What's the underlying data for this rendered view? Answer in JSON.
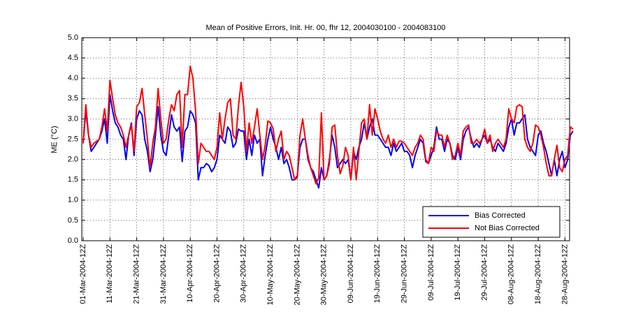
{
  "chart_data": {
    "type": "line",
    "title": "Mean of Positive Errors, Init. Hr. 00, fhr 12, 2004030100 - 2004083100",
    "y_label": "ME (°C)",
    "categories": [
      "01-Mar-2004-12Z",
      null,
      null,
      null,
      null,
      null,
      null,
      null,
      null,
      null,
      "11-Mar-2004-12Z",
      null,
      null,
      null,
      null,
      null,
      null,
      null,
      null,
      null,
      "21-Mar-2004-12Z",
      null,
      null,
      null,
      null,
      null,
      null,
      null,
      null,
      null,
      "31-Mar-2004-12Z",
      null,
      null,
      null,
      null,
      null,
      null,
      null,
      null,
      null,
      "10-Apr-2004-12Z",
      null,
      null,
      null,
      null,
      null,
      null,
      null,
      null,
      null,
      "20-Apr-2004-12Z",
      null,
      null,
      null,
      null,
      null,
      null,
      null,
      null,
      null,
      "30-Apr-2004-12Z",
      null,
      null,
      null,
      null,
      null,
      null,
      null,
      null,
      null,
      "10-May-2004-12Z",
      null,
      null,
      null,
      null,
      null,
      null,
      null,
      null,
      null,
      "20-May-2004-12Z",
      null,
      null,
      null,
      null,
      null,
      null,
      null,
      null,
      null,
      "30-May-2004-12Z",
      null,
      null,
      null,
      null,
      null,
      null,
      null,
      null,
      null,
      "09-Jun-2004-12Z",
      null,
      null,
      null,
      null,
      null,
      null,
      null,
      null,
      null,
      "19-Jun-2004-12Z",
      null,
      null,
      null,
      null,
      null,
      null,
      null,
      null,
      null,
      "29-Jun-2004-12Z",
      null,
      null,
      null,
      null,
      null,
      null,
      null,
      null,
      null,
      "09-Jul-2004-12Z",
      null,
      null,
      null,
      null,
      null,
      null,
      null,
      null,
      null,
      "19-Jul-2004-12Z",
      null,
      null,
      null,
      null,
      null,
      null,
      null,
      null,
      null,
      "29-Jul-2004-12Z",
      null,
      null,
      null,
      null,
      null,
      null,
      null,
      null,
      null,
      "08-Aug-2004-12Z",
      null,
      null,
      null,
      null,
      null,
      null,
      null,
      null,
      null,
      "18-Aug-2004-12Z",
      null,
      null,
      null,
      null,
      null,
      null,
      null,
      null,
      null,
      "28-Aug-2004-12Z",
      null,
      null,
      null
    ],
    "series": [
      {
        "name": "Bias Corrected",
        "color": "#0000ff",
        "values": [
          2.4,
          3.2,
          2.6,
          2.2,
          2.3,
          2.4,
          2.5,
          2.7,
          3.0,
          2.4,
          3.6,
          3.2,
          2.9,
          2.8,
          2.6,
          2.5,
          2.0,
          2.6,
          2.9,
          2.1,
          3.0,
          3.2,
          3.1,
          2.5,
          2.2,
          1.7,
          2.0,
          2.6,
          3.3,
          2.6,
          2.2,
          2.1,
          2.6,
          3.1,
          2.8,
          2.7,
          2.8,
          1.95,
          2.7,
          2.8,
          3.2,
          3.1,
          2.9,
          1.5,
          1.8,
          1.8,
          1.9,
          1.85,
          1.7,
          1.8,
          2.0,
          2.6,
          2.5,
          2.4,
          2.8,
          2.7,
          2.3,
          2.4,
          2.75,
          2.7,
          2.7,
          2.0,
          2.5,
          2.1,
          2.6,
          2.4,
          2.5,
          1.6,
          2.1,
          2.5,
          2.8,
          2.5,
          2.3,
          2.0,
          2.3,
          1.9,
          2.0,
          1.8,
          1.5,
          1.5,
          1.6,
          2.3,
          2.5,
          2.5,
          2.0,
          1.8,
          1.7,
          1.5,
          1.3,
          1.8,
          1.5,
          1.6,
          2.0,
          2.6,
          2.3,
          1.8,
          1.9,
          2.0,
          1.9,
          2.0,
          1.5,
          2.2,
          2.0,
          2.3,
          2.5,
          2.9,
          2.5,
          2.8,
          3.0,
          2.6,
          2.6,
          2.5,
          2.4,
          2.3,
          2.3,
          2.1,
          2.4,
          2.2,
          2.3,
          2.4,
          2.2,
          2.2,
          2.1,
          1.8,
          2.1,
          2.3,
          2.5,
          2.4,
          1.95,
          1.9,
          2.1,
          2.3,
          2.8,
          2.5,
          2.5,
          2.2,
          2.5,
          2.4,
          2.1,
          2.0,
          2.3,
          2.0,
          2.5,
          2.7,
          2.8,
          2.5,
          2.3,
          2.4,
          2.3,
          2.5,
          2.6,
          2.4,
          2.5,
          2.3,
          2.2,
          2.4,
          2.3,
          2.2,
          2.4,
          2.8,
          3.0,
          2.6,
          2.9,
          2.9,
          3.0,
          3.1,
          2.5,
          2.3,
          2.2,
          2.1,
          2.6,
          2.7,
          2.4,
          2.2,
          1.9,
          1.6,
          2.0,
          1.6,
          2.0,
          2.2,
          1.8,
          2.0,
          2.6,
          2.7
        ]
      },
      {
        "name": "Not Bias Corrected",
        "color": "#ff0000",
        "values": [
          2.4,
          3.35,
          2.6,
          2.3,
          2.4,
          2.45,
          2.5,
          2.8,
          3.25,
          2.7,
          3.95,
          3.5,
          3.1,
          2.9,
          2.8,
          2.6,
          2.3,
          2.6,
          2.85,
          2.2,
          3.3,
          3.4,
          3.75,
          3.1,
          2.5,
          1.8,
          2.4,
          2.8,
          3.75,
          3.0,
          2.4,
          2.5,
          3.0,
          3.35,
          3.2,
          3.6,
          3.7,
          2.3,
          3.6,
          3.6,
          4.3,
          4.0,
          3.2,
          1.9,
          2.4,
          2.3,
          2.2,
          2.2,
          2.1,
          2.0,
          2.3,
          3.15,
          2.5,
          3.0,
          3.4,
          3.5,
          2.6,
          2.5,
          3.3,
          3.9,
          3.3,
          2.2,
          2.9,
          2.4,
          2.8,
          3.25,
          2.6,
          2.0,
          2.35,
          2.95,
          2.9,
          2.75,
          2.2,
          2.5,
          2.7,
          2.0,
          2.2,
          2.1,
          1.8,
          1.5,
          1.55,
          2.6,
          3.0,
          2.5,
          2.1,
          1.8,
          1.6,
          1.4,
          1.55,
          3.15,
          1.5,
          1.6,
          1.9,
          2.8,
          2.85,
          2.1,
          1.65,
          1.85,
          2.3,
          2.1,
          1.5,
          2.3,
          1.5,
          2.2,
          2.9,
          3.0,
          2.5,
          3.35,
          2.6,
          3.25,
          3.0,
          2.7,
          2.5,
          2.4,
          2.6,
          2.3,
          2.5,
          2.3,
          2.45,
          2.45,
          2.4,
          2.3,
          2.2,
          2.1,
          2.3,
          2.4,
          2.6,
          2.5,
          2.0,
          1.9,
          2.3,
          2.2,
          2.7,
          2.6,
          2.6,
          2.3,
          2.6,
          2.4,
          2.0,
          2.1,
          2.4,
          2.1,
          2.7,
          2.8,
          2.85,
          2.4,
          2.4,
          2.5,
          2.4,
          2.5,
          2.75,
          2.4,
          2.6,
          2.2,
          2.4,
          2.5,
          2.4,
          2.3,
          2.5,
          3.25,
          3.0,
          2.9,
          3.3,
          3.35,
          3.3,
          2.5,
          2.3,
          2.2,
          2.4,
          2.85,
          2.8,
          2.6,
          2.3,
          1.9,
          1.6,
          1.6,
          2.0,
          2.35,
          1.8,
          1.7,
          2.0,
          2.1,
          2.8,
          2.75
        ]
      }
    ],
    "ylim": [
      0,
      5
    ],
    "yticks": [
      {
        "value": 0,
        "label": "0.0"
      },
      0.5,
      {
        "value": 1,
        "label": "1.0"
      },
      1.5,
      {
        "value": 2,
        "label": "2.0"
      },
      2.5,
      {
        "value": 3,
        "label": "3.0"
      },
      3.5,
      {
        "value": 4,
        "label": "4.0"
      },
      4.5,
      {
        "value": 5,
        "label": "5.0"
      }
    ],
    "grid": true,
    "legend": "lower right"
  }
}
